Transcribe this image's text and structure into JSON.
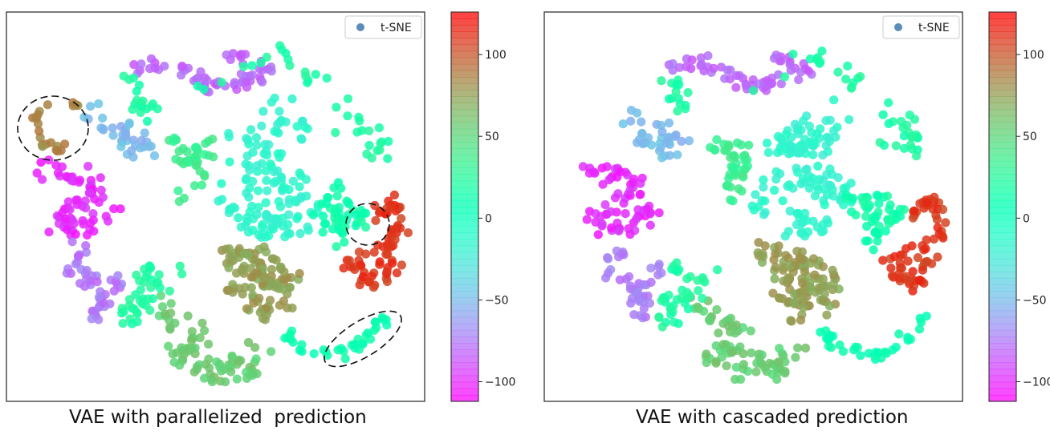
{
  "chart_data": [
    {
      "type": "scatter",
      "title": "",
      "caption": "VAE with parallelized  prediction",
      "xlabel": "",
      "ylabel": "",
      "legend": {
        "label": "t-SNE",
        "marker_color": "#5b8db8",
        "placement": "top-right"
      },
      "axes_ticks": "none",
      "colorbar": {
        "colormap": "rainbow",
        "range": [
          -112,
          126
        ],
        "ticks": [
          100,
          50,
          0,
          -50,
          -100
        ],
        "tick_labels": [
          "100",
          "50",
          "0",
          "−50",
          "−100"
        ]
      },
      "clusters": [
        {
          "name": "outlier-loop-left",
          "value": 85
        },
        {
          "name": "purple-left",
          "value": -100
        },
        {
          "name": "blue-top-center",
          "value": -80
        },
        {
          "name": "cyan-top-left",
          "value": -50
        },
        {
          "name": "green-top",
          "value": 20
        },
        {
          "name": "yellowgreen-center",
          "value": 35
        },
        {
          "name": "teal-center",
          "value": -15
        },
        {
          "name": "green-right",
          "value": 15
        },
        {
          "name": "red-right",
          "value": 110
        },
        {
          "name": "orange-bottom-center",
          "value": 75
        },
        {
          "name": "tan-bottom",
          "value": 55
        },
        {
          "name": "green-bottom-left",
          "value": 20
        },
        {
          "name": "blue-bottom-left",
          "value": -75
        },
        {
          "name": "green-bottom-right",
          "value": 10
        }
      ],
      "annotations": [
        "dashed circle around orange outlier loop (left)",
        "dashed circle around mixed points (right)",
        "dashed ellipse around green strip (bottom right)"
      ]
    },
    {
      "type": "scatter",
      "title": "",
      "caption": "VAE with cascaded prediction",
      "xlabel": "",
      "ylabel": "",
      "legend": {
        "label": "t-SNE",
        "marker_color": "#5b8db8",
        "placement": "top-right"
      },
      "axes_ticks": "none",
      "colorbar": {
        "colormap": "rainbow",
        "range": [
          -112,
          126
        ],
        "ticks": [
          100,
          50,
          0,
          -50,
          -100
        ],
        "tick_labels": [
          "100",
          "50",
          "0",
          "−50",
          "−100"
        ]
      },
      "clusters": [
        {
          "name": "purple-left",
          "value": -100
        },
        {
          "name": "blue-top-center",
          "value": -80
        },
        {
          "name": "cyan-top-left",
          "value": -50
        },
        {
          "name": "green-top",
          "value": 20
        },
        {
          "name": "yellowgreen-center",
          "value": 35
        },
        {
          "name": "teal-center",
          "value": -15
        },
        {
          "name": "green-right",
          "value": 15
        },
        {
          "name": "red-right",
          "value": 110
        },
        {
          "name": "orange-bottom-center",
          "value": 75
        },
        {
          "name": "tan-bottom",
          "value": 55
        },
        {
          "name": "green-bottom-left",
          "value": 20
        },
        {
          "name": "blue-bottom-left",
          "value": -75
        },
        {
          "name": "green-bottom-right",
          "value": 10
        }
      ],
      "annotations": []
    }
  ]
}
